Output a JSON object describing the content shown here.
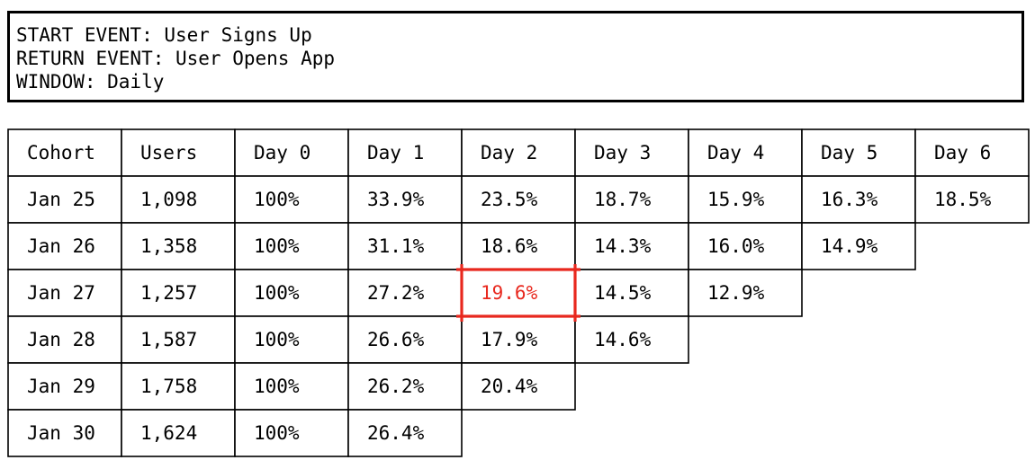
{
  "header": {
    "start_event": "START EVENT: User Signs Up",
    "return_event": "RETURN EVENT: User Opens App",
    "window": "WINDOW: Daily"
  },
  "colors": {
    "text": "#000000",
    "border": "#000000",
    "highlight": "#e8281e"
  },
  "chart_data": {
    "type": "table",
    "columns": [
      "Cohort",
      "Users",
      "Day 0",
      "Day 1",
      "Day 2",
      "Day 3",
      "Day 4",
      "Day 5",
      "Day 6"
    ],
    "rows": [
      [
        "Jan 25",
        "1,098",
        "100%",
        "33.9%",
        "23.5%",
        "18.7%",
        "15.9%",
        "16.3%",
        "18.5%"
      ],
      [
        "Jan 26",
        "1,358",
        "100%",
        "31.1%",
        "18.6%",
        "14.3%",
        "16.0%",
        "14.9%"
      ],
      [
        "Jan 27",
        "1,257",
        "100%",
        "27.2%",
        "19.6%",
        "14.5%",
        "12.9%"
      ],
      [
        "Jan 28",
        "1,587",
        "100%",
        "26.6%",
        "17.9%",
        "14.6%"
      ],
      [
        "Jan 29",
        "1,758",
        "100%",
        "26.2%",
        "20.4%"
      ],
      [
        "Jan 30",
        "1,624",
        "100%",
        "26.4%"
      ]
    ],
    "highlight": {
      "row": 2,
      "column": 4
    }
  }
}
